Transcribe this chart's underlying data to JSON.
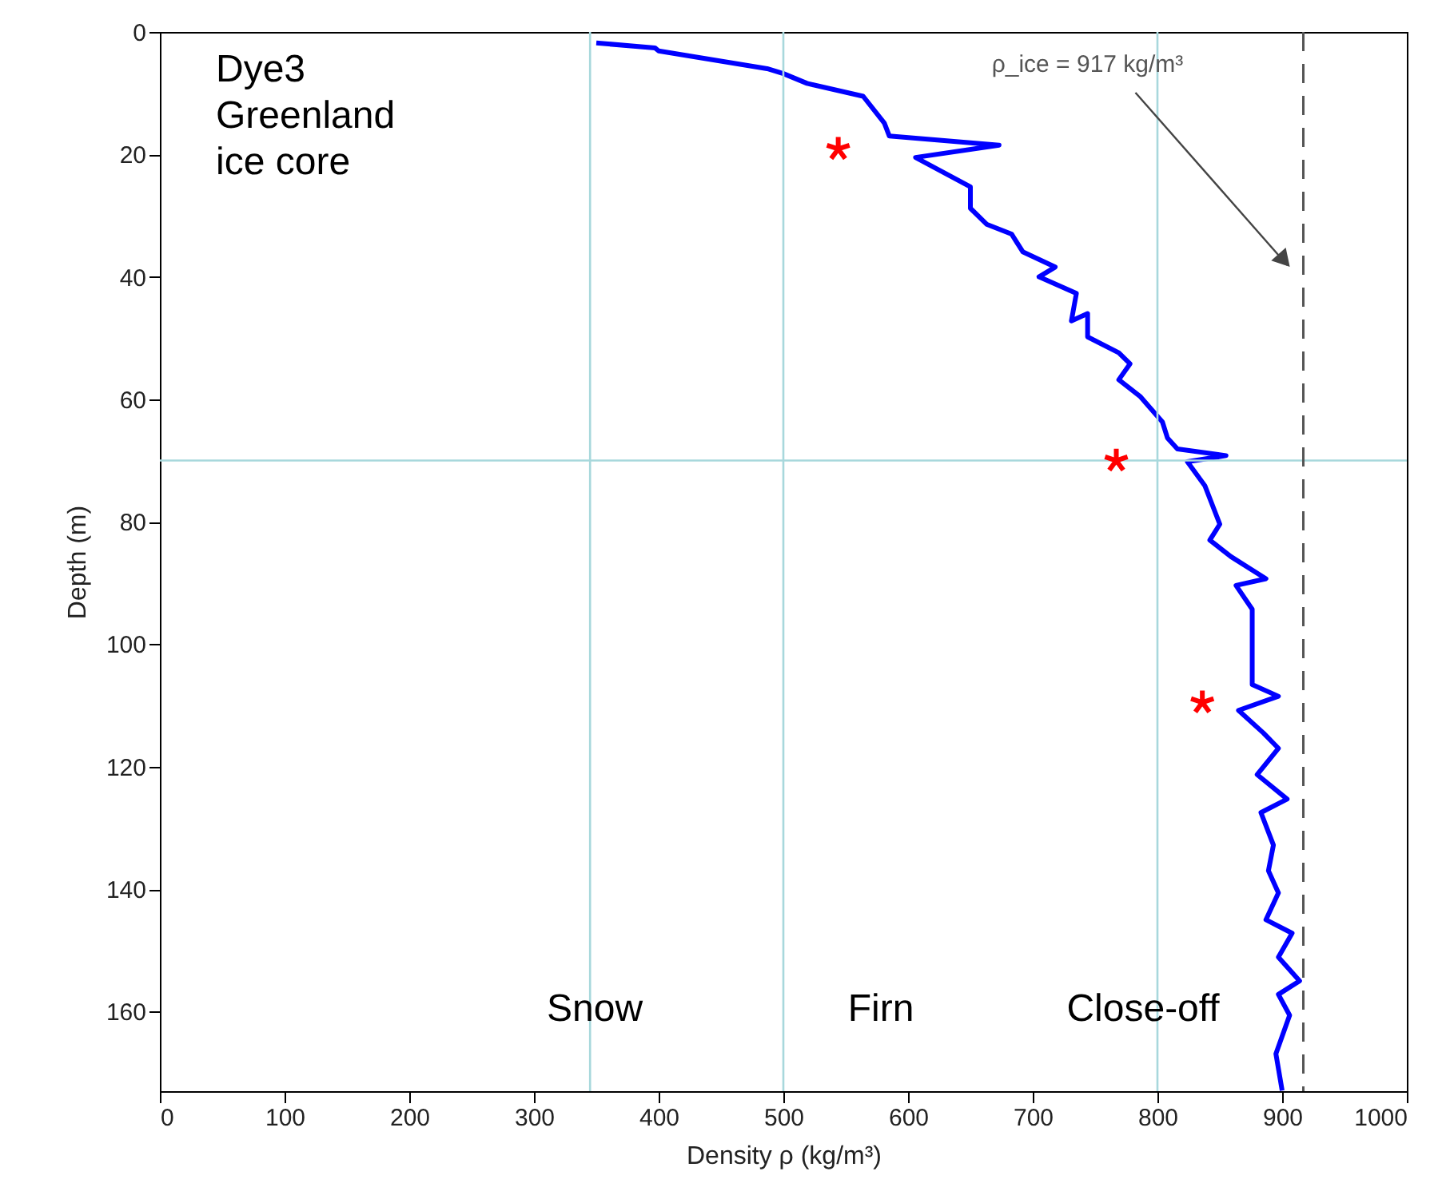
{
  "chart_data": {
    "type": "line",
    "xlabel": "Density ρ (kg/m³)",
    "ylabel": "Depth (m)",
    "xlim": [
      0,
      1000
    ],
    "ylim": [
      173,
      0
    ],
    "xticks": [
      0,
      100,
      200,
      300,
      400,
      500,
      600,
      700,
      800,
      900,
      1000
    ],
    "yticks": [
      0,
      20,
      40,
      60,
      80,
      100,
      120,
      140,
      160
    ],
    "grid": false,
    "series": [
      {
        "color": "#0000ff",
        "line_style": "solid",
        "marker": "none",
        "x": [
          350,
          397,
          400,
          487,
          500,
          519,
          564,
          581,
          585,
          673,
          606,
          650,
          650,
          663,
          683,
          692,
          718,
          705,
          735,
          731,
          744,
          744,
          769,
          778,
          769,
          786,
          804,
          808,
          816,
          855,
          824,
          838,
          850,
          842,
          859,
          887,
          863,
          876,
          876,
          897,
          865,
          885,
          897,
          880,
          904,
          883,
          893,
          889,
          897,
          887,
          908,
          897,
          914,
          897,
          906,
          895,
          900
        ],
        "values": [
          1.8,
          2.6,
          3.1,
          6.0,
          6.8,
          8.4,
          10.5,
          14.9,
          17.0,
          18.5,
          20.5,
          25.3,
          28.8,
          31.4,
          33.0,
          35.9,
          38.4,
          40.0,
          42.7,
          47.2,
          46.0,
          49.8,
          52.4,
          54.2,
          56.8,
          59.5,
          63.7,
          66.3,
          68.1,
          69.2,
          70.2,
          74.1,
          80.4,
          83.0,
          85.7,
          89.3,
          90.4,
          94.3,
          106.6,
          108.5,
          110.8,
          114.5,
          117.0,
          121.3,
          125.3,
          127.5,
          132.8,
          137.0,
          140.6,
          145.0,
          147.2,
          151.1,
          155.0,
          157.2,
          160.6,
          166.9,
          172.9
        ]
      },
      {
        "type": "scatter",
        "color": "#ff0000",
        "marker": "cross",
        "x": [
          544,
          767,
          836
        ],
        "values": [
          19.1,
          70,
          109.5
        ]
      }
    ],
    "ref_lines": [
      {
        "axis": "x",
        "value": 345,
        "color": "#a8d8dc"
      },
      {
        "axis": "x",
        "value": 500,
        "color": "#a8d8dc"
      },
      {
        "axis": "x",
        "value": 800,
        "color": "#a8d8dc"
      },
      {
        "axis": "y",
        "value": 70,
        "color": "#a8d8dc"
      },
      {
        "axis": "x",
        "value": 917,
        "color": "#555555",
        "line_style": "dashed",
        "label": "ρ_ice = 917 kg/m³"
      }
    ],
    "annotations": [
      "Dye3\nGreenland\nice core",
      "Snow",
      "Firn",
      "Close-off"
    ]
  }
}
